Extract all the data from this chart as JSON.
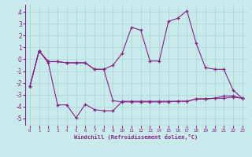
{
  "xlabel": "Windchill (Refroidissement éolien,°C)",
  "background_color": "#c8eaea",
  "grid_color": "#b0d8d8",
  "line_color": "#882288",
  "xlim": [
    -0.5,
    23.5
  ],
  "ylim": [
    -5.6,
    4.6
  ],
  "xticks": [
    0,
    1,
    2,
    3,
    4,
    5,
    6,
    7,
    8,
    9,
    10,
    11,
    12,
    13,
    14,
    15,
    16,
    17,
    18,
    19,
    20,
    21,
    22,
    23
  ],
  "yticks": [
    -5,
    -4,
    -3,
    -2,
    -1,
    0,
    1,
    2,
    3,
    4
  ],
  "series1_x": [
    0,
    1,
    2,
    3,
    4,
    5,
    6,
    7,
    8,
    9,
    10,
    11,
    12,
    13,
    14,
    15,
    16,
    17,
    18,
    19,
    20,
    21,
    22,
    23
  ],
  "series1_y": [
    -2.3,
    0.7,
    -0.2,
    -0.2,
    -0.3,
    -0.3,
    -0.3,
    -0.85,
    -0.85,
    -0.5,
    0.5,
    2.7,
    2.45,
    -0.15,
    -0.15,
    3.2,
    3.45,
    4.1,
    1.35,
    -0.7,
    -0.85,
    -0.85,
    -2.6,
    -3.3
  ],
  "series2_x": [
    0,
    1,
    2,
    3,
    4,
    5,
    6,
    7,
    8,
    9,
    10,
    11,
    12,
    13,
    14,
    15,
    16,
    17,
    18,
    19,
    20,
    21,
    22,
    23
  ],
  "series2_y": [
    -2.3,
    0.7,
    -0.2,
    -0.2,
    -0.3,
    -0.3,
    -0.3,
    -0.85,
    -0.85,
    -3.5,
    -3.6,
    -3.6,
    -3.6,
    -3.6,
    -3.6,
    -3.6,
    -3.55,
    -3.55,
    -3.35,
    -3.35,
    -3.3,
    -3.1,
    -3.1,
    -3.3
  ],
  "series3_x": [
    0,
    1,
    2,
    3,
    4,
    5,
    6,
    7,
    8,
    9,
    10,
    11,
    12,
    13,
    14,
    15,
    16,
    17,
    18,
    19,
    20,
    21,
    22,
    23
  ],
  "series3_y": [
    -2.3,
    0.7,
    -0.3,
    -3.85,
    -3.85,
    -4.95,
    -3.8,
    -4.25,
    -4.35,
    -4.35,
    -3.55,
    -3.55,
    -3.55,
    -3.55,
    -3.55,
    -3.55,
    -3.55,
    -3.55,
    -3.35,
    -3.35,
    -3.3,
    -3.3,
    -3.2,
    -3.3
  ]
}
